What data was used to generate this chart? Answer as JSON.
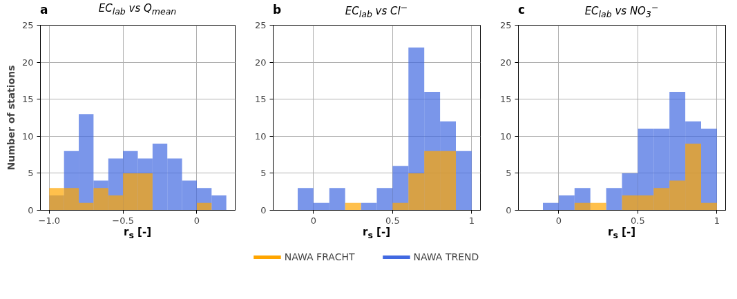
{
  "chart_data": [
    {
      "type": "histogram",
      "title": "EC$_{lab}$ vs Q$_{mean}$",
      "annotations": [
        "a"
      ],
      "xlabel": "r$_{s}$ [-]",
      "ylabel": "Number of stations",
      "bins": [
        -1.0,
        -0.9,
        -0.8,
        -0.7,
        -0.6,
        -0.5,
        -0.4,
        -0.3,
        -0.2,
        -0.1,
        0.0,
        0.1,
        0.2
      ],
      "series": [
        {
          "color": "#ffa500",
          "values": [
            3,
            3,
            1,
            3,
            2,
            5,
            5,
            0,
            0,
            0,
            1,
            0
          ]
        },
        {
          "color": "#4169e1",
          "values": [
            2,
            8,
            13,
            4,
            7,
            8,
            7,
            9,
            7,
            4,
            3,
            2
          ]
        }
      ],
      "xlim": [
        -1.06,
        0.26
      ],
      "xticks": [
        {
          "value": -1.0,
          "label": "−1.0"
        },
        {
          "value": -0.5,
          "label": "−0.5"
        },
        0.0
      ],
      "ylim": [
        0,
        25
      ],
      "yticks": [
        0,
        5,
        10,
        15,
        20,
        25
      ],
      "grid": true
    },
    {
      "type": "histogram",
      "title": "EC$_{lab}$ vs Cl$^{−}$",
      "annotations": [
        "b"
      ],
      "xlabel": "r$_{s}$ [-]",
      "bins": [
        -0.1,
        0.0,
        0.1,
        0.2,
        0.3,
        0.4,
        0.5,
        0.6,
        0.7,
        0.8,
        0.9,
        1.0
      ],
      "series": [
        {
          "name": "NAWA FRACHT",
          "color": "#ffa500",
          "values": [
            0,
            0,
            0,
            1,
            0,
            0,
            1,
            5,
            8,
            8,
            0
          ]
        },
        {
          "name": "NAWA TREND",
          "color": "#4169e1",
          "values": [
            3,
            1,
            3,
            null,
            1,
            3,
            6,
            22,
            16,
            12,
            8
          ]
        }
      ],
      "xlim": [
        -0.255,
        1.055
      ],
      "xticks": [
        0.0,
        0.5,
        1.0
      ],
      "ylim": [
        0,
        25
      ],
      "yticks": [
        0,
        5,
        10,
        15,
        20,
        25
      ],
      "grid": true,
      "legend": "bottom"
    },
    {
      "type": "histogram",
      "title": "EC$_{lab}$ vs NO$_{3}$$^{−}$",
      "annotations": [
        "c"
      ],
      "xlabel": "r$_{s}$ [-]",
      "bins": [
        -0.1,
        0.0,
        0.1,
        0.2,
        0.3,
        0.4,
        0.5,
        0.6,
        0.7,
        0.8,
        0.9,
        1.0
      ],
      "series": [
        {
          "color": "#ffa500",
          "values": [
            0,
            0,
            1,
            1,
            0,
            2,
            2,
            3,
            4,
            9,
            1
          ]
        },
        {
          "color": "#4169e1",
          "values": [
            1,
            2,
            3,
            null,
            3,
            5,
            11,
            11,
            16,
            12,
            11
          ]
        }
      ],
      "xlim": [
        -0.255,
        1.055
      ],
      "xticks": [
        0.0,
        0.5,
        1.0
      ],
      "ylim": [
        0,
        25
      ],
      "yticks": [
        0,
        5,
        10,
        15,
        20,
        25
      ],
      "grid": true
    }
  ]
}
